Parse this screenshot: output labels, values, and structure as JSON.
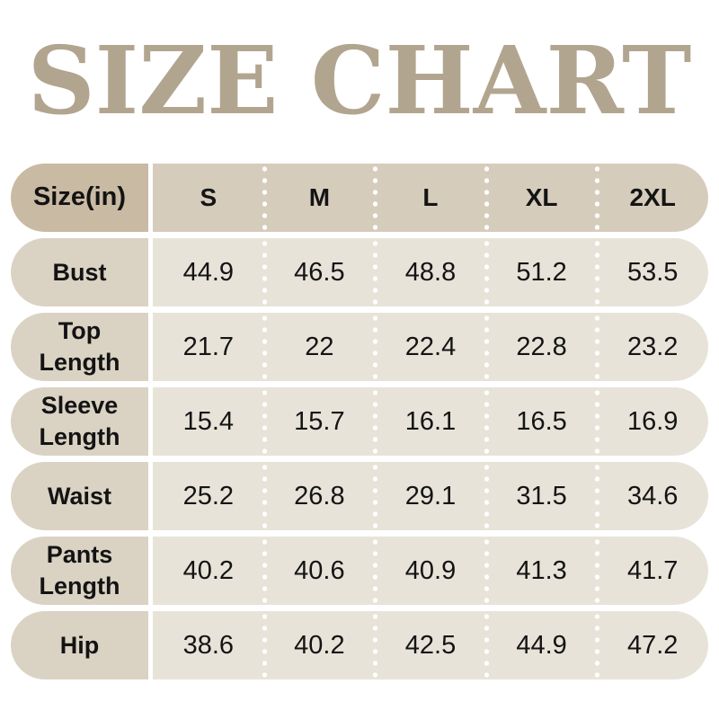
{
  "title": "SIZE CHART",
  "colors": {
    "title_text": "#b2a58f",
    "header_label_bg": "#c9baa3",
    "header_strip_bg": "#d6ccbc",
    "body_label_bg": "#dad2c3",
    "body_strip_bg": "#e8e3d9",
    "text": "#141414",
    "separator_dots": "#ffffff",
    "page_bg": "#ffffff"
  },
  "table": {
    "header_label": "Size(in)",
    "columns": [
      "S",
      "M",
      "L",
      "XL",
      "2XL"
    ],
    "rows": [
      {
        "label": "Bust",
        "values": [
          "44.9",
          "46.5",
          "48.8",
          "51.2",
          "53.5"
        ]
      },
      {
        "label": "Top Length",
        "values": [
          "21.7",
          "22",
          "22.4",
          "22.8",
          "23.2"
        ]
      },
      {
        "label": "Sleeve Length",
        "values": [
          "15.4",
          "15.7",
          "16.1",
          "16.5",
          "16.9"
        ]
      },
      {
        "label": "Waist",
        "values": [
          "25.2",
          "26.8",
          "29.1",
          "31.5",
          "34.6"
        ]
      },
      {
        "label": "Pants Length",
        "values": [
          "40.2",
          "40.6",
          "40.9",
          "41.3",
          "41.7"
        ]
      },
      {
        "label": "Hip",
        "values": [
          "38.6",
          "40.2",
          "42.5",
          "44.9",
          "47.2"
        ]
      }
    ]
  },
  "chart_data": {
    "type": "table",
    "title": "SIZE CHART",
    "unit": "inches",
    "corner_header": "Size(in)",
    "columns": [
      "S",
      "M",
      "L",
      "XL",
      "2XL"
    ],
    "rows": [
      {
        "measurement": "Bust",
        "values": [
          44.9,
          46.5,
          48.8,
          51.2,
          53.5
        ]
      },
      {
        "measurement": "Top Length",
        "values": [
          21.7,
          22,
          22.4,
          22.8,
          23.2
        ]
      },
      {
        "measurement": "Sleeve Length",
        "values": [
          15.4,
          15.7,
          16.1,
          16.5,
          16.9
        ]
      },
      {
        "measurement": "Waist",
        "values": [
          25.2,
          26.8,
          29.1,
          31.5,
          34.6
        ]
      },
      {
        "measurement": "Pants Length",
        "values": [
          40.2,
          40.6,
          40.9,
          41.3,
          41.7
        ]
      },
      {
        "measurement": "Hip",
        "values": [
          38.6,
          40.2,
          42.5,
          44.9,
          47.2
        ]
      }
    ]
  }
}
